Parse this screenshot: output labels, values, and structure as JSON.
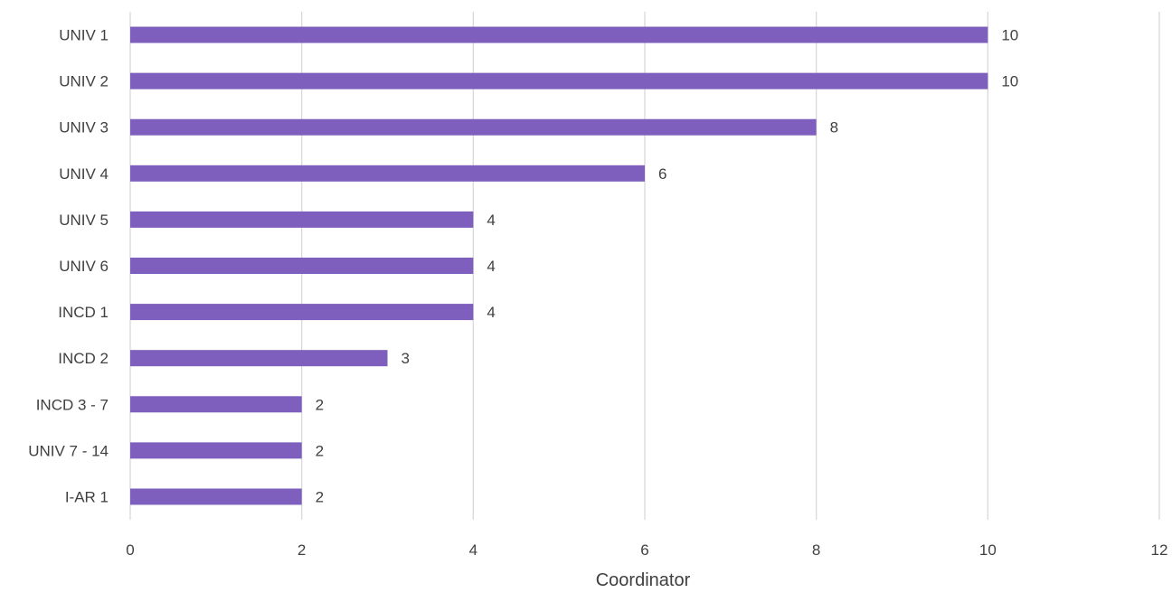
{
  "chart_data": {
    "type": "bar",
    "orientation": "horizontal",
    "categories": [
      "UNIV 1",
      "UNIV 2",
      "UNIV 3",
      "UNIV 4",
      "UNIV 5",
      "UNIV 6",
      "INCD 1",
      "INCD 2",
      "INCD 3 - 7",
      "UNIV 7 - 14",
      "I-AR 1"
    ],
    "values": [
      10,
      10,
      8,
      6,
      4,
      4,
      4,
      3,
      2,
      2,
      2
    ],
    "title": "",
    "xlabel": "Coordinator",
    "ylabel": "",
    "xlim": [
      0,
      12
    ],
    "xticks": [
      0,
      2,
      4,
      6,
      8,
      10,
      12
    ],
    "grid": "vertical",
    "legend": "none",
    "data_labels": true,
    "bar_color": "#7E5FBD",
    "grid_color": "#D9D9D9",
    "text_color": "#404040"
  }
}
